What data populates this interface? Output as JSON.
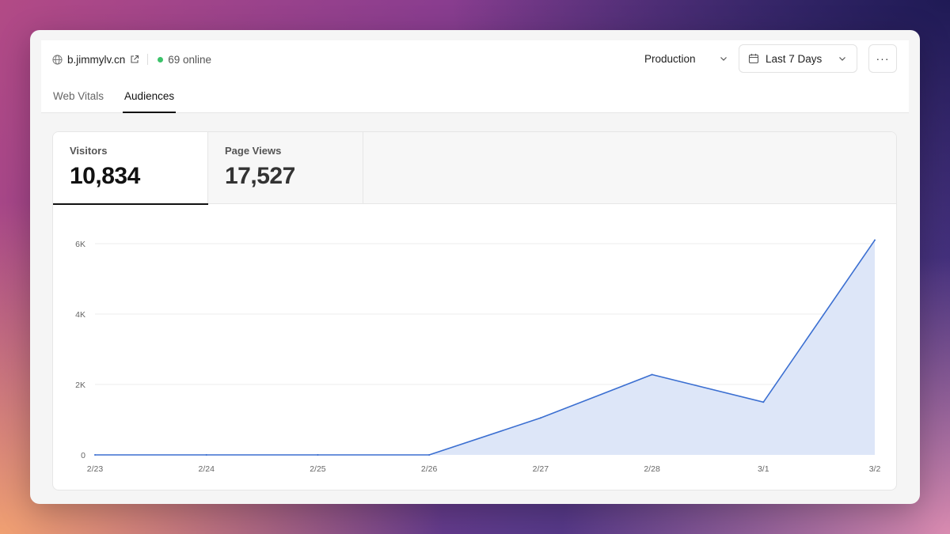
{
  "site": {
    "domain": "b.jimmylv.cn",
    "online": "69 online"
  },
  "controls": {
    "environment": "Production",
    "range": "Last 7 Days",
    "more": "···"
  },
  "tabs": [
    {
      "label": "Web Vitals"
    },
    {
      "label": "Audiences"
    }
  ],
  "metrics": [
    {
      "label": "Visitors",
      "value": "10,834"
    },
    {
      "label": "Page Views",
      "value": "17,527"
    }
  ],
  "colors": {
    "line": "#3b6fd1",
    "fill": "#dde6f8",
    "accent_online": "#3cc36a"
  },
  "chart_data": {
    "type": "area",
    "x": [
      "2/23",
      "2/24",
      "2/25",
      "2/26",
      "2/27",
      "2/28",
      "3/1",
      "3/2"
    ],
    "series": [
      {
        "values": [
          0,
          0,
          0,
          0,
          1050,
          2280,
          1500,
          6100
        ]
      }
    ],
    "ylim": [
      0,
      6000
    ],
    "yticks": [
      {
        "value": 0,
        "label": "0"
      },
      {
        "value": 2000,
        "label": "2K"
      },
      {
        "value": 4000,
        "label": "4K"
      },
      {
        "value": 6000,
        "label": "6K"
      }
    ],
    "grid": true,
    "title": "",
    "xlabel": "",
    "ylabel": ""
  }
}
